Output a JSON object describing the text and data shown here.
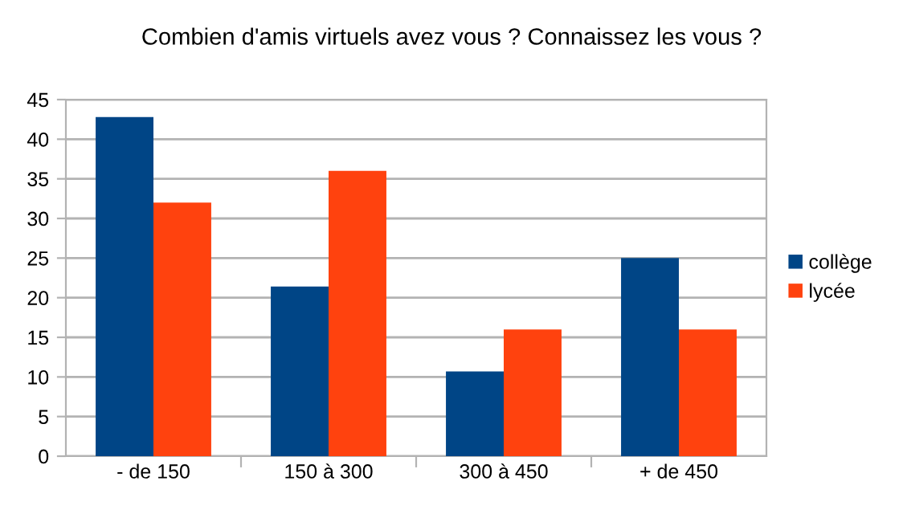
{
  "chart_data": {
    "type": "bar",
    "title": "Combien d'amis virtuels avez vous ? Connaissez les vous ?",
    "categories": [
      "- de 150",
      "150 à 300",
      "300 à 450",
      "+ de 450"
    ],
    "series": [
      {
        "name": "collège",
        "color": "#004586",
        "values": [
          42.8,
          21.4,
          10.7,
          25
        ]
      },
      {
        "name": "lycée",
        "color": "#ff420e",
        "values": [
          32,
          36,
          16,
          16
        ]
      }
    ],
    "ylim": [
      0,
      45
    ],
    "yticks": [
      0,
      5,
      10,
      15,
      20,
      25,
      30,
      35,
      40,
      45
    ],
    "grid": "y",
    "legend": "right"
  }
}
